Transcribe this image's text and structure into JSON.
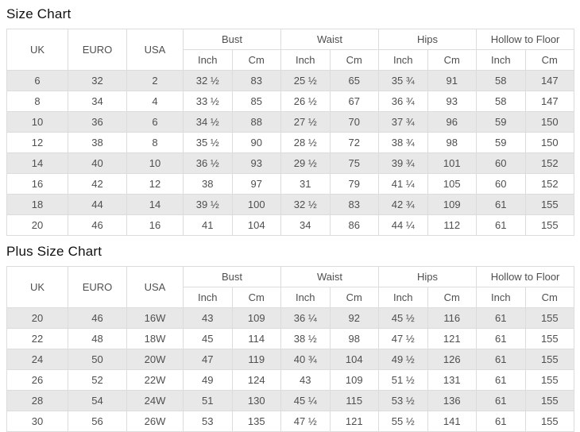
{
  "titles": {
    "size_chart": "Size Chart",
    "plus_size_chart": "Plus Size Chart"
  },
  "header": {
    "uk": "UK",
    "euro": "EURO",
    "usa": "USA",
    "bust": "Bust",
    "waist": "Waist",
    "hips": "Hips",
    "hollow_to_floor": "Hollow to Floor",
    "inch": "Inch",
    "cm": "Cm"
  },
  "size_chart_rows": [
    [
      "6",
      "32",
      "2",
      "32 ½",
      "83",
      "25 ½",
      "65",
      "35 ¾",
      "91",
      "58",
      "147"
    ],
    [
      "8",
      "34",
      "4",
      "33 ½",
      "85",
      "26 ½",
      "67",
      "36 ¾",
      "93",
      "58",
      "147"
    ],
    [
      "10",
      "36",
      "6",
      "34 ½",
      "88",
      "27 ½",
      "70",
      "37 ¾",
      "96",
      "59",
      "150"
    ],
    [
      "12",
      "38",
      "8",
      "35 ½",
      "90",
      "28 ½",
      "72",
      "38 ¾",
      "98",
      "59",
      "150"
    ],
    [
      "14",
      "40",
      "10",
      "36 ½",
      "93",
      "29 ½",
      "75",
      "39 ¾",
      "101",
      "60",
      "152"
    ],
    [
      "16",
      "42",
      "12",
      "38",
      "97",
      "31",
      "79",
      "41 ¼",
      "105",
      "60",
      "152"
    ],
    [
      "18",
      "44",
      "14",
      "39 ½",
      "100",
      "32 ½",
      "83",
      "42 ¾",
      "109",
      "61",
      "155"
    ],
    [
      "20",
      "46",
      "16",
      "41",
      "104",
      "34",
      "86",
      "44 ¼",
      "112",
      "61",
      "155"
    ]
  ],
  "plus_size_chart_rows": [
    [
      "20",
      "46",
      "16W",
      "43",
      "109",
      "36 ¼",
      "92",
      "45 ½",
      "116",
      "61",
      "155"
    ],
    [
      "22",
      "48",
      "18W",
      "45",
      "114",
      "38 ½",
      "98",
      "47 ½",
      "121",
      "61",
      "155"
    ],
    [
      "24",
      "50",
      "20W",
      "47",
      "119",
      "40 ¾",
      "104",
      "49 ½",
      "126",
      "61",
      "155"
    ],
    [
      "26",
      "52",
      "22W",
      "49",
      "124",
      "43",
      "109",
      "51 ½",
      "131",
      "61",
      "155"
    ],
    [
      "28",
      "54",
      "24W",
      "51",
      "130",
      "45 ¼",
      "115",
      "53 ½",
      "136",
      "61",
      "155"
    ],
    [
      "30",
      "56",
      "26W",
      "53",
      "135",
      "47 ½",
      "121",
      "55 ½",
      "141",
      "61",
      "155"
    ]
  ],
  "colors": {
    "stripe_row_bg": "#e8e8e8",
    "table_border": "#dcdcdc",
    "cell_text": "#4f4f4f",
    "title_text": "#111111"
  }
}
